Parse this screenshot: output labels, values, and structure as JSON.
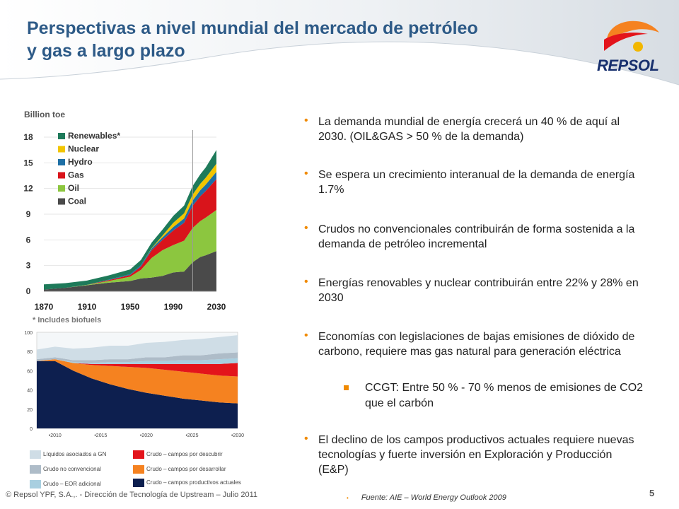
{
  "slide": {
    "title": "Perspectivas a nivel mundial del mercado de petróleo y gas a largo plazo",
    "logo_text": "REPSOL",
    "page_number": "5",
    "footer": "© Repsol YPF, S.A.,. - Dirección de Tecnología de Upstream – Julio 2011",
    "source": "Fuente: AIE – World Energy Outlook 2009"
  },
  "colors": {
    "title": "#2d5a87",
    "accent_orange": "#f08a00",
    "renewables": "#1e7a5a",
    "nuclear": "#f2c500",
    "hydro": "#1d6fa5",
    "gas": "#d9141b",
    "oil": "#8cc63f",
    "coal": "#4a4a4a"
  },
  "bullets": [
    "La demanda mundial de energía crecerá un 40 % de aquí al 2030. (OIL&GAS > 50 % de la demanda)",
    "Se espera un crecimiento interanual de la demanda de energía 1.7%",
    "Crudos no convencionales contribuirán de forma sostenida a la demanda de petróleo incremental",
    "Energías renovables y nuclear contribuirán entre 22% y 28% en 2030",
    "Economías con legislaciones de bajas emisiones de dióxido de carbono, requiere mas gas natural para generación eléctrica",
    "El declino de los campos productivos actuales requiere nuevas tecnologías y fuerte inversión en Exploración y Producción (E&P)"
  ],
  "sub_bullets": [
    "CCGT: Entre 50 % - 70 % menos de emisiones de CO2 que el carbón"
  ],
  "chart_data": [
    {
      "type": "area",
      "ylabel": "Billion toe",
      "x_ticks": [
        "1870",
        "1910",
        "1950",
        "1990",
        "2030"
      ],
      "y_ticks": [
        "0",
        "3",
        "6",
        "9",
        "12",
        "15",
        "18"
      ],
      "ylim": [
        0,
        18
      ],
      "stacked": true,
      "footnote": "* Includes biofuels",
      "x": [
        1870,
        1890,
        1910,
        1930,
        1950,
        1960,
        1970,
        1980,
        1990,
        2000,
        2008,
        2015,
        2020,
        2030
      ],
      "series": [
        {
          "name": "Coal",
          "values": [
            0.2,
            0.4,
            0.7,
            1.0,
            1.2,
            1.5,
            1.6,
            1.8,
            2.2,
            2.3,
            3.4,
            4.0,
            4.2,
            4.7
          ]
        },
        {
          "name": "Oil",
          "values": [
            0,
            0,
            0.05,
            0.2,
            0.5,
            1.0,
            2.3,
            3.0,
            3.2,
            3.6,
            4.0,
            4.2,
            4.4,
            4.8
          ]
        },
        {
          "name": "Gas",
          "values": [
            0,
            0,
            0,
            0.1,
            0.2,
            0.4,
            0.9,
            1.2,
            1.7,
            2.1,
            2.6,
            2.9,
            3.1,
            3.6
          ]
        },
        {
          "name": "Hydro",
          "values": [
            0,
            0,
            0,
            0.05,
            0.1,
            0.15,
            0.2,
            0.3,
            0.4,
            0.5,
            0.6,
            0.7,
            0.75,
            0.85
          ]
        },
        {
          "name": "Nuclear",
          "values": [
            0,
            0,
            0,
            0,
            0,
            0,
            0.05,
            0.2,
            0.5,
            0.6,
            0.7,
            0.75,
            0.8,
            0.95
          ]
        },
        {
          "name": "Renewables*",
          "values": [
            0.6,
            0.55,
            0.5,
            0.5,
            0.55,
            0.6,
            0.65,
            0.7,
            0.8,
            0.9,
            1.0,
            1.1,
            1.2,
            1.6
          ]
        }
      ]
    },
    {
      "type": "area",
      "stacked": true,
      "x_ticks": [
        "2010",
        "2015",
        "2020",
        "2025",
        "2030"
      ],
      "y_ticks": [
        "0",
        "20",
        "40",
        "60",
        "80",
        "100"
      ],
      "ylim": [
        0,
        100
      ],
      "x": [
        2008,
        2010,
        2012,
        2014,
        2016,
        2018,
        2020,
        2022,
        2024,
        2026,
        2028,
        2030
      ],
      "series": [
        {
          "name": "Crudo – campos productivos actuales",
          "color": "#0d1f4f",
          "values": [
            70,
            70,
            60,
            52,
            46,
            41,
            37,
            34,
            31,
            29,
            27,
            26
          ]
        },
        {
          "name": "Crudo – campos por desarrollar",
          "color": "#f58220",
          "values": [
            0,
            2,
            8,
            14,
            19,
            23,
            26,
            27,
            28,
            28,
            28,
            28
          ]
        },
        {
          "name": "Crudo – campos por descubrir",
          "color": "#e3141b",
          "values": [
            0,
            0,
            0,
            1,
            2,
            3,
            4,
            6,
            8,
            10,
            12,
            14
          ]
        },
        {
          "name": "Crudo – EOR adicional",
          "color": "#a8cfe0",
          "values": [
            0,
            0,
            1,
            1,
            2,
            2,
            3,
            3,
            4,
            4,
            5,
            5
          ]
        },
        {
          "name": "Crudo no convencional",
          "color": "#aebcc8",
          "values": [
            2,
            2,
            2,
            3,
            3,
            3,
            4,
            4,
            5,
            5,
            6,
            6
          ]
        },
        {
          "name": "Líquidos asociados a GN",
          "color": "#cfdde6",
          "values": [
            10,
            11,
            12,
            13,
            14,
            14,
            15,
            16,
            16,
            17,
            17,
            18
          ]
        }
      ]
    }
  ],
  "legend2": [
    {
      "label": "Líquidos asociados a GN",
      "color": "#cfdde6"
    },
    {
      "label": "Crudo – campos por descubrir",
      "color": "#e3141b"
    },
    {
      "label": "Crudo no convencional",
      "color": "#aebcc8"
    },
    {
      "label": "Crudo – campos por desarrollar",
      "color": "#f58220"
    },
    {
      "label": "Crudo – EOR adicional",
      "color": "#a8cfe0"
    },
    {
      "label": "Crudo – campos productivos actuales",
      "color": "#0d1f4f"
    }
  ]
}
